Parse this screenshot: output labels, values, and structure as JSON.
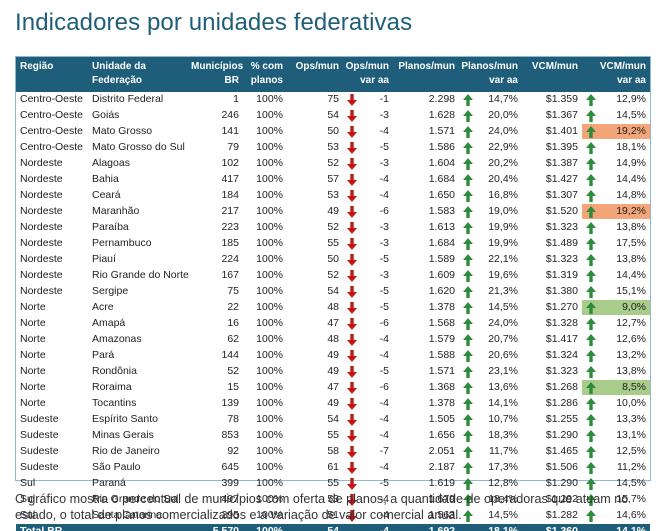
{
  "title": "Indicadores por unidades federativas",
  "headers": {
    "regiao": "Região",
    "uf": [
      "Unidade da",
      "Federação"
    ],
    "municipios": [
      "Municípios",
      "BR"
    ],
    "pct": [
      "% com",
      "planos"
    ],
    "ops": "Ops/mun",
    "ops_var": [
      "Ops/mun",
      "var aa"
    ],
    "planos": "Planos/mun",
    "planos_var": [
      "Planos/mun",
      "var aa"
    ],
    "vcm": "VCM/mun",
    "vcm_var": [
      "VCM/mun",
      "var aa"
    ]
  },
  "colors": {
    "header": "#1f5e7a",
    "bar": "#a9c6e6",
    "up_arrow": "#2e8b3a",
    "down_arrow": "#c01818",
    "highlight_high": "#f4a57a",
    "highlight_low": "#a8cc8a"
  },
  "rows": [
    {
      "regiao": "Centro-Oeste",
      "uf": "Distrito Federal",
      "mun": "1",
      "pct": "100%",
      "ops": "75",
      "ops_num": 75,
      "ops_dir": "down",
      "ops_var": "-1",
      "planos": "2.298",
      "planos_num": 2298,
      "planos_dir": "up",
      "planos_var": "14,7%",
      "vcm": "$1.359",
      "vcm_num": 1359,
      "vcm_dir": "up",
      "vcm_var": "12,9%",
      "hl": ""
    },
    {
      "regiao": "Centro-Oeste",
      "uf": "Goiás",
      "mun": "246",
      "pct": "100%",
      "ops": "54",
      "ops_num": 54,
      "ops_dir": "down",
      "ops_var": "-3",
      "planos": "1.628",
      "planos_num": 1628,
      "planos_dir": "up",
      "planos_var": "20,0%",
      "vcm": "$1.367",
      "vcm_num": 1367,
      "vcm_dir": "up",
      "vcm_var": "14,5%",
      "hl": ""
    },
    {
      "regiao": "Centro-Oeste",
      "uf": "Mato Grosso",
      "mun": "141",
      "pct": "100%",
      "ops": "50",
      "ops_num": 50,
      "ops_dir": "down",
      "ops_var": "-4",
      "planos": "1.571",
      "planos_num": 1571,
      "planos_dir": "up",
      "planos_var": "24,0%",
      "vcm": "$1.401",
      "vcm_num": 1401,
      "vcm_dir": "up",
      "vcm_var": "19,2%",
      "hl": "high"
    },
    {
      "regiao": "Centro-Oeste",
      "uf": "Mato Grosso do Sul",
      "mun": "79",
      "pct": "100%",
      "ops": "53",
      "ops_num": 53,
      "ops_dir": "down",
      "ops_var": "-5",
      "planos": "1.586",
      "planos_num": 1586,
      "planos_dir": "up",
      "planos_var": "22,9%",
      "vcm": "$1.395",
      "vcm_num": 1395,
      "vcm_dir": "up",
      "vcm_var": "18,1%",
      "hl": ""
    },
    {
      "regiao": "Nordeste",
      "uf": "Alagoas",
      "mun": "102",
      "pct": "100%",
      "ops": "52",
      "ops_num": 52,
      "ops_dir": "down",
      "ops_var": "-3",
      "planos": "1.604",
      "planos_num": 1604,
      "planos_dir": "up",
      "planos_var": "20,2%",
      "vcm": "$1.387",
      "vcm_num": 1387,
      "vcm_dir": "up",
      "vcm_var": "14,9%",
      "hl": ""
    },
    {
      "regiao": "Nordeste",
      "uf": "Bahia",
      "mun": "417",
      "pct": "100%",
      "ops": "57",
      "ops_num": 57,
      "ops_dir": "down",
      "ops_var": "-4",
      "planos": "1.684",
      "planos_num": 1684,
      "planos_dir": "up",
      "planos_var": "20,4%",
      "vcm": "$1.427",
      "vcm_num": 1427,
      "vcm_dir": "up",
      "vcm_var": "14,4%",
      "hl": ""
    },
    {
      "regiao": "Nordeste",
      "uf": "Ceará",
      "mun": "184",
      "pct": "100%",
      "ops": "53",
      "ops_num": 53,
      "ops_dir": "down",
      "ops_var": "-4",
      "planos": "1.650",
      "planos_num": 1650,
      "planos_dir": "up",
      "planos_var": "16,8%",
      "vcm": "$1.307",
      "vcm_num": 1307,
      "vcm_dir": "up",
      "vcm_var": "14,8%",
      "hl": ""
    },
    {
      "regiao": "Nordeste",
      "uf": "Maranhão",
      "mun": "217",
      "pct": "100%",
      "ops": "49",
      "ops_num": 49,
      "ops_dir": "down",
      "ops_var": "-6",
      "planos": "1.583",
      "planos_num": 1583,
      "planos_dir": "up",
      "planos_var": "19,0%",
      "vcm": "$1.520",
      "vcm_num": 1520,
      "vcm_dir": "up",
      "vcm_var": "19,2%",
      "hl": "high"
    },
    {
      "regiao": "Nordeste",
      "uf": "Paraíba",
      "mun": "223",
      "pct": "100%",
      "ops": "52",
      "ops_num": 52,
      "ops_dir": "down",
      "ops_var": "-3",
      "planos": "1.613",
      "planos_num": 1613,
      "planos_dir": "up",
      "planos_var": "19,9%",
      "vcm": "$1.323",
      "vcm_num": 1323,
      "vcm_dir": "up",
      "vcm_var": "13,8%",
      "hl": ""
    },
    {
      "regiao": "Nordeste",
      "uf": "Pernambuco",
      "mun": "185",
      "pct": "100%",
      "ops": "55",
      "ops_num": 55,
      "ops_dir": "down",
      "ops_var": "-3",
      "planos": "1.684",
      "planos_num": 1684,
      "planos_dir": "up",
      "planos_var": "19,9%",
      "vcm": "$1.489",
      "vcm_num": 1489,
      "vcm_dir": "up",
      "vcm_var": "17,5%",
      "hl": ""
    },
    {
      "regiao": "Nordeste",
      "uf": "Piauí",
      "mun": "224",
      "pct": "100%",
      "ops": "50",
      "ops_num": 50,
      "ops_dir": "down",
      "ops_var": "-5",
      "planos": "1.589",
      "planos_num": 1589,
      "planos_dir": "up",
      "planos_var": "22,1%",
      "vcm": "$1.323",
      "vcm_num": 1323,
      "vcm_dir": "up",
      "vcm_var": "13,8%",
      "hl": ""
    },
    {
      "regiao": "Nordeste",
      "uf": "Rio Grande do Norte",
      "mun": "167",
      "pct": "100%",
      "ops": "52",
      "ops_num": 52,
      "ops_dir": "down",
      "ops_var": "-3",
      "planos": "1.609",
      "planos_num": 1609,
      "planos_dir": "up",
      "planos_var": "19,6%",
      "vcm": "$1.319",
      "vcm_num": 1319,
      "vcm_dir": "up",
      "vcm_var": "14,4%",
      "hl": ""
    },
    {
      "regiao": "Nordeste",
      "uf": "Sergipe",
      "mun": "75",
      "pct": "100%",
      "ops": "54",
      "ops_num": 54,
      "ops_dir": "down",
      "ops_var": "-5",
      "planos": "1.620",
      "planos_num": 1620,
      "planos_dir": "up",
      "planos_var": "21,3%",
      "vcm": "$1.380",
      "vcm_num": 1380,
      "vcm_dir": "up",
      "vcm_var": "15,1%",
      "hl": ""
    },
    {
      "regiao": "Norte",
      "uf": "Acre",
      "mun": "22",
      "pct": "100%",
      "ops": "48",
      "ops_num": 48,
      "ops_dir": "down",
      "ops_var": "-5",
      "planos": "1.378",
      "planos_num": 1378,
      "planos_dir": "up",
      "planos_var": "14,5%",
      "vcm": "$1.270",
      "vcm_num": 1270,
      "vcm_dir": "up",
      "vcm_var": "9,0%",
      "hl": "low"
    },
    {
      "regiao": "Norte",
      "uf": "Amapá",
      "mun": "16",
      "pct": "100%",
      "ops": "47",
      "ops_num": 47,
      "ops_dir": "down",
      "ops_var": "-6",
      "planos": "1.568",
      "planos_num": 1568,
      "planos_dir": "up",
      "planos_var": "24,0%",
      "vcm": "$1.328",
      "vcm_num": 1328,
      "vcm_dir": "up",
      "vcm_var": "12,7%",
      "hl": ""
    },
    {
      "regiao": "Norte",
      "uf": "Amazonas",
      "mun": "62",
      "pct": "100%",
      "ops": "48",
      "ops_num": 48,
      "ops_dir": "down",
      "ops_var": "-4",
      "planos": "1.579",
      "planos_num": 1579,
      "planos_dir": "up",
      "planos_var": "20,7%",
      "vcm": "$1.417",
      "vcm_num": 1417,
      "vcm_dir": "up",
      "vcm_var": "12,6%",
      "hl": ""
    },
    {
      "regiao": "Norte",
      "uf": "Pará",
      "mun": "144",
      "pct": "100%",
      "ops": "49",
      "ops_num": 49,
      "ops_dir": "down",
      "ops_var": "-4",
      "planos": "1.588",
      "planos_num": 1588,
      "planos_dir": "up",
      "planos_var": "20,6%",
      "vcm": "$1.324",
      "vcm_num": 1324,
      "vcm_dir": "up",
      "vcm_var": "13,2%",
      "hl": ""
    },
    {
      "regiao": "Norte",
      "uf": "Rondônia",
      "mun": "52",
      "pct": "100%",
      "ops": "49",
      "ops_num": 49,
      "ops_dir": "down",
      "ops_var": "-5",
      "planos": "1.571",
      "planos_num": 1571,
      "planos_dir": "up",
      "planos_var": "23,1%",
      "vcm": "$1.323",
      "vcm_num": 1323,
      "vcm_dir": "up",
      "vcm_var": "13,8%",
      "hl": ""
    },
    {
      "regiao": "Norte",
      "uf": "Roraima",
      "mun": "15",
      "pct": "100%",
      "ops": "47",
      "ops_num": 47,
      "ops_dir": "down",
      "ops_var": "-6",
      "planos": "1.368",
      "planos_num": 1368,
      "planos_dir": "up",
      "planos_var": "13,6%",
      "vcm": "$1.268",
      "vcm_num": 1268,
      "vcm_dir": "up",
      "vcm_var": "8,5%",
      "hl": "low"
    },
    {
      "regiao": "Norte",
      "uf": "Tocantins",
      "mun": "139",
      "pct": "100%",
      "ops": "49",
      "ops_num": 49,
      "ops_dir": "down",
      "ops_var": "-4",
      "planos": "1.378",
      "planos_num": 1378,
      "planos_dir": "up",
      "planos_var": "14,1%",
      "vcm": "$1.286",
      "vcm_num": 1286,
      "vcm_dir": "up",
      "vcm_var": "10,0%",
      "hl": ""
    },
    {
      "regiao": "Sudeste",
      "uf": "Espírito Santo",
      "mun": "78",
      "pct": "100%",
      "ops": "54",
      "ops_num": 54,
      "ops_dir": "down",
      "ops_var": "-4",
      "planos": "1.505",
      "planos_num": 1505,
      "planos_dir": "up",
      "planos_var": "10,7%",
      "vcm": "$1.255",
      "vcm_num": 1255,
      "vcm_dir": "up",
      "vcm_var": "13,3%",
      "hl": ""
    },
    {
      "regiao": "Sudeste",
      "uf": "Minas Gerais",
      "mun": "853",
      "pct": "100%",
      "ops": "55",
      "ops_num": 55,
      "ops_dir": "down",
      "ops_var": "-4",
      "planos": "1.656",
      "planos_num": 1656,
      "planos_dir": "up",
      "planos_var": "18,3%",
      "vcm": "$1.290",
      "vcm_num": 1290,
      "vcm_dir": "up",
      "vcm_var": "13,1%",
      "hl": ""
    },
    {
      "regiao": "Sudeste",
      "uf": "Rio de Janeiro",
      "mun": "92",
      "pct": "100%",
      "ops": "58",
      "ops_num": 58,
      "ops_dir": "down",
      "ops_var": "-7",
      "planos": "2.051",
      "planos_num": 2051,
      "planos_dir": "up",
      "planos_var": "11,7%",
      "vcm": "$1.465",
      "vcm_num": 1465,
      "vcm_dir": "up",
      "vcm_var": "12,5%",
      "hl": ""
    },
    {
      "regiao": "Sudeste",
      "uf": "São Paulo",
      "mun": "645",
      "pct": "100%",
      "ops": "61",
      "ops_num": 61,
      "ops_dir": "down",
      "ops_var": "-4",
      "planos": "2.187",
      "planos_num": 2187,
      "planos_dir": "up",
      "planos_var": "17,3%",
      "vcm": "$1.506",
      "vcm_num": 1506,
      "vcm_dir": "up",
      "vcm_var": "11,2%",
      "hl": ""
    },
    {
      "regiao": "Sul",
      "uf": "Paraná",
      "mun": "399",
      "pct": "100%",
      "ops": "55",
      "ops_num": 55,
      "ops_dir": "down",
      "ops_var": "-5",
      "planos": "1.619",
      "planos_num": 1619,
      "planos_dir": "up",
      "planos_var": "12,8%",
      "vcm": "$1.290",
      "vcm_num": 1290,
      "vcm_dir": "up",
      "vcm_var": "14,5%",
      "hl": ""
    },
    {
      "regiao": "Sul",
      "uf": "Rio Grande do Sul",
      "mun": "497",
      "pct": "100%",
      "ops": "53",
      "ops_num": 53,
      "ops_dir": "down",
      "ops_var": "-4",
      "planos": "1.679",
      "planos_num": 1679,
      "planos_dir": "up",
      "planos_var": "18,4%",
      "vcm": "$1.292",
      "vcm_num": 1292,
      "vcm_dir": "up",
      "vcm_var": "15,7%",
      "hl": ""
    },
    {
      "regiao": "Sul",
      "uf": "Santa Catarina",
      "mun": "295",
      "pct": "100%",
      "ops": "51",
      "ops_num": 51,
      "ops_dir": "down",
      "ops_var": "-4",
      "planos": "1.563",
      "planos_num": 1563,
      "planos_dir": "up",
      "planos_var": "14,5%",
      "vcm": "$1.282",
      "vcm_num": 1282,
      "vcm_dir": "up",
      "vcm_var": "14,6%",
      "hl": ""
    }
  ],
  "total": {
    "regiao": "Total BR",
    "mun": "5.570",
    "pct": "100%",
    "ops": "54",
    "ops_var": "-4",
    "planos": "1.692",
    "planos_var": "18,1%",
    "vcm": "$1.360",
    "vcm_var": "14,1%"
  },
  "scale_max": {
    "ops": 75,
    "planos": 2298,
    "vcm": 1520
  },
  "footnote": "O gráfico mostra o percentual de municípios com oferta de planos, a quantidade de operadoras que atuam no estado, o total de planos comercializados e a variação de valor comercial anual."
}
